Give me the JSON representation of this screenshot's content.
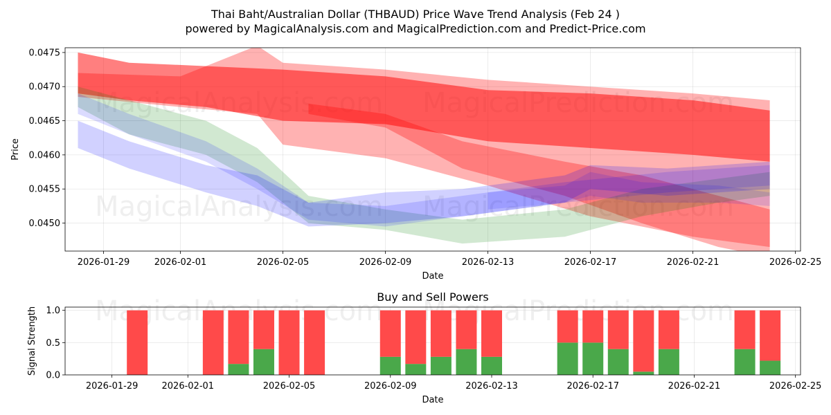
{
  "colors": {
    "red_band": "#ff0000",
    "green_band": "#008000",
    "blue_band": "#0000ff",
    "buy": "#4aa84a",
    "sell": "#ff4a4a"
  },
  "chart_data": [
    {
      "type": "area",
      "title_line1": "Thai Baht/Australian Dollar (THBAUD) Price Wave Trend Analysis (Feb 24 )",
      "title_line2": "powered by MagicalAnalysis.com and MagicalPrediction.com and Predict-Price.com",
      "xlabel": "Date",
      "ylabel": "Price",
      "xlim": [
        "2026-01-27.5",
        "2026-02-25.2"
      ],
      "ylim": [
        0.04459,
        0.04757
      ],
      "x_ticks": [
        "2026-01-29",
        "2026-02-01",
        "2026-02-05",
        "2026-02-09",
        "2026-02-13",
        "2026-02-17",
        "2026-02-21",
        "2026-02-25"
      ],
      "y_ticks": [
        "0.0450",
        "0.0455",
        "0.0460",
        "0.0465",
        "0.0470",
        "0.0475"
      ],
      "watermarks": [
        "MagicalAnalysis.com",
        "MagicalPrediction.com",
        "MagicalAnalysis.com",
        "MagicalPrediction.com"
      ],
      "series": [
        {
          "name": "red-wave-upper",
          "color": "red",
          "opacity": 0.5,
          "x": [
            "2026-01-28",
            "2026-01-30",
            "2026-02-02",
            "2026-02-05",
            "2026-02-09",
            "2026-02-13",
            "2026-02-17",
            "2026-02-21",
            "2026-02-24"
          ],
          "low": [
            0.0469,
            0.0468,
            0.0467,
            0.0465,
            0.04645,
            0.0462,
            0.0461,
            0.046,
            0.0459
          ],
          "high": [
            0.0475,
            0.04735,
            0.0473,
            0.04725,
            0.04715,
            0.04695,
            0.0469,
            0.0468,
            0.04665
          ]
        },
        {
          "name": "red-wave-wide",
          "color": "red",
          "opacity": 0.3,
          "x": [
            "2026-01-28",
            "2026-02-01",
            "2026-02-04",
            "2026-02-05",
            "2026-02-09",
            "2026-02-13",
            "2026-02-17",
            "2026-02-21",
            "2026-02-24"
          ],
          "low": [
            0.04685,
            0.0467,
            0.0466,
            0.04615,
            0.04595,
            0.04555,
            0.0451,
            0.0448,
            0.04465
          ],
          "high": [
            0.0472,
            0.04715,
            0.0476,
            0.04735,
            0.04725,
            0.0471,
            0.047,
            0.0469,
            0.0468
          ]
        },
        {
          "name": "red-wave-lower",
          "color": "red",
          "opacity": 0.3,
          "x": [
            "2026-02-06",
            "2026-02-09",
            "2026-02-12",
            "2026-02-16",
            "2026-02-19",
            "2026-02-22",
            "2026-02-24"
          ],
          "low": [
            0.0466,
            0.0464,
            0.0458,
            0.0454,
            0.045,
            0.04465,
            0.0445
          ],
          "high": [
            0.04675,
            0.0466,
            0.0462,
            0.0459,
            0.0457,
            0.0454,
            0.0452
          ]
        },
        {
          "name": "green-wave",
          "color": "green",
          "opacity": 0.18,
          "x": [
            "2026-01-28",
            "2026-01-30",
            "2026-02-02",
            "2026-02-04",
            "2026-02-06",
            "2026-02-09",
            "2026-02-12",
            "2026-02-16",
            "2026-02-19",
            "2026-02-22",
            "2026-02-24"
          ],
          "low": [
            0.0467,
            0.0463,
            0.046,
            0.0456,
            0.045,
            0.0449,
            0.0447,
            0.0448,
            0.0451,
            0.0453,
            0.0454
          ],
          "high": [
            0.047,
            0.0468,
            0.0465,
            0.0461,
            0.0454,
            0.0452,
            0.04505,
            0.0452,
            0.0455,
            0.04565,
            0.04575
          ]
        },
        {
          "name": "blue-wave-main",
          "color": "blue",
          "opacity": 0.18,
          "x": [
            "2026-01-28",
            "2026-01-30",
            "2026-02-02",
            "2026-02-04",
            "2026-02-06",
            "2026-02-09",
            "2026-02-12",
            "2026-02-16",
            "2026-02-17",
            "2026-02-20",
            "2026-02-24"
          ],
          "low": [
            0.0461,
            0.0458,
            0.04545,
            0.04525,
            0.04495,
            0.045,
            0.0451,
            0.0453,
            0.0455,
            0.0454,
            0.0455
          ],
          "high": [
            0.0465,
            0.0462,
            0.04585,
            0.0457,
            0.0453,
            0.04545,
            0.0455,
            0.0457,
            0.04585,
            0.0458,
            0.0459
          ]
        },
        {
          "name": "blue-wave-upper",
          "color": "blue",
          "opacity": 0.14,
          "x": [
            "2026-01-28",
            "2026-01-30",
            "2026-02-02",
            "2026-02-04",
            "2026-02-06",
            "2026-02-09",
            "2026-02-12",
            "2026-02-16",
            "2026-02-20",
            "2026-02-24"
          ],
          "low": [
            0.0466,
            0.0463,
            0.0459,
            0.0455,
            0.04505,
            0.04495,
            0.0451,
            0.0453,
            0.04545,
            0.04555
          ],
          "high": [
            0.0469,
            0.0466,
            0.0462,
            0.0458,
            0.0453,
            0.04525,
            0.0454,
            0.0456,
            0.04575,
            0.04585
          ]
        },
        {
          "name": "purple-overlap",
          "color": "blue",
          "opacity": 0.12,
          "x": [
            "2026-02-13",
            "2026-02-16",
            "2026-02-17",
            "2026-02-19",
            "2026-02-22",
            "2026-02-24"
          ],
          "low": [
            0.0452,
            0.0453,
            0.0454,
            0.0453,
            0.0453,
            0.04525
          ],
          "high": [
            0.04545,
            0.04555,
            0.04575,
            0.0456,
            0.04555,
            0.04545
          ]
        }
      ]
    },
    {
      "type": "bar",
      "title": "Buy and Sell Powers",
      "xlabel": "Date",
      "ylabel": "Signal Strength",
      "ylim": [
        0,
        1.05
      ],
      "x_ticks": [
        "2026-01-29",
        "2026-02-01",
        "2026-02-05",
        "2026-02-09",
        "2026-02-13",
        "2026-02-17",
        "2026-02-21",
        "2026-02-25"
      ],
      "y_ticks": [
        "0.0",
        "0.5",
        "1.0"
      ],
      "categories": [
        "2026-01-30",
        "2026-02-02",
        "2026-02-03",
        "2026-02-04",
        "2026-02-05",
        "2026-02-06",
        "2026-02-09",
        "2026-02-10",
        "2026-02-11",
        "2026-02-12",
        "2026-02-13",
        "2026-02-16",
        "2026-02-17",
        "2026-02-18",
        "2026-02-19",
        "2026-02-20",
        "2026-02-23",
        "2026-02-24"
      ],
      "series": [
        {
          "name": "Buy",
          "values": [
            0,
            0,
            0.17,
            0.4,
            0,
            0,
            0.28,
            0.17,
            0.28,
            0.4,
            0.28,
            0.5,
            0.5,
            0.4,
            0.05,
            0.4,
            0.4,
            0.22
          ]
        },
        {
          "name": "Sell",
          "values": [
            1.0,
            1.0,
            0.83,
            0.6,
            1.0,
            1.0,
            0.72,
            0.83,
            0.72,
            0.6,
            0.72,
            0.5,
            0.5,
            0.6,
            0.95,
            0.6,
            0.6,
            0.78
          ]
        }
      ]
    }
  ]
}
